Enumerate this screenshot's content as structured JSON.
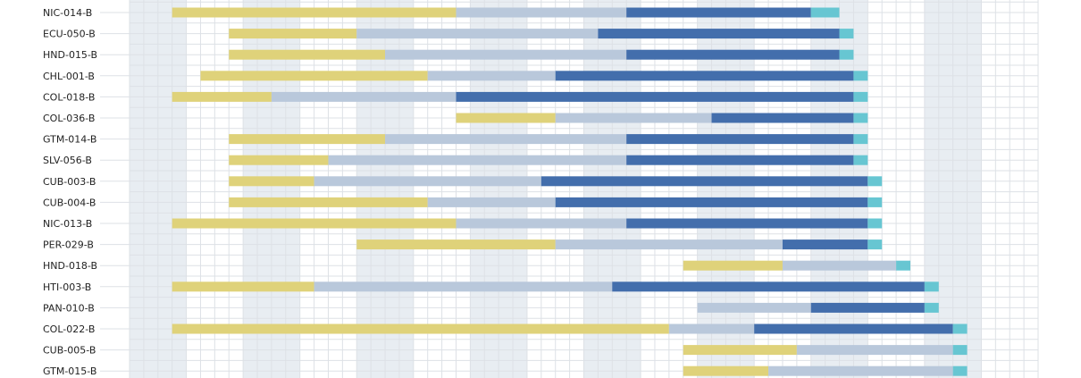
{
  "chart_data": {
    "type": "gantt",
    "title": "",
    "xlabel": "",
    "ylabel": "",
    "x_unit": "grid column",
    "xlim": [
      0,
      64
    ],
    "shaded_band_period": 8,
    "phases": [
      "phase-1",
      "phase-2",
      "phase-3",
      "phase-4"
    ],
    "colors": {
      "phase-1": "#dfd27a",
      "phase-2": "#b9c8db",
      "phase-3": "#436eac",
      "phase-4": "#67c6d2",
      "band": "#e8edf2",
      "grid": "#dde1e6"
    },
    "rows": [
      {
        "label": "NIC-014-B",
        "segments": [
          [
            3,
            23,
            "phase-1"
          ],
          [
            23,
            35,
            "phase-2"
          ],
          [
            35,
            48,
            "phase-3"
          ],
          [
            48,
            50,
            "phase-4"
          ]
        ]
      },
      {
        "label": "ECU-050-B",
        "segments": [
          [
            7,
            16,
            "phase-1"
          ],
          [
            16,
            33,
            "phase-2"
          ],
          [
            33,
            50,
            "phase-3"
          ],
          [
            50,
            51,
            "phase-4"
          ]
        ]
      },
      {
        "label": "HND-015-B",
        "segments": [
          [
            7,
            18,
            "phase-1"
          ],
          [
            18,
            35,
            "phase-2"
          ],
          [
            35,
            50,
            "phase-3"
          ],
          [
            50,
            51,
            "phase-4"
          ]
        ]
      },
      {
        "label": "CHL-001-B",
        "segments": [
          [
            5,
            21,
            "phase-1"
          ],
          [
            21,
            30,
            "phase-2"
          ],
          [
            30,
            51,
            "phase-3"
          ],
          [
            51,
            52,
            "phase-4"
          ]
        ]
      },
      {
        "label": "COL-018-B",
        "segments": [
          [
            3,
            10,
            "phase-1"
          ],
          [
            10,
            23,
            "phase-2"
          ],
          [
            23,
            51,
            "phase-3"
          ],
          [
            51,
            52,
            "phase-4"
          ]
        ]
      },
      {
        "label": "COL-036-B",
        "segments": [
          [
            23,
            30,
            "phase-1"
          ],
          [
            30,
            41,
            "phase-2"
          ],
          [
            41,
            51,
            "phase-3"
          ],
          [
            51,
            52,
            "phase-4"
          ]
        ]
      },
      {
        "label": "GTM-014-B",
        "segments": [
          [
            7,
            18,
            "phase-1"
          ],
          [
            18,
            35,
            "phase-2"
          ],
          [
            35,
            51,
            "phase-3"
          ],
          [
            51,
            52,
            "phase-4"
          ]
        ]
      },
      {
        "label": "SLV-056-B",
        "segments": [
          [
            7,
            14,
            "phase-1"
          ],
          [
            14,
            35,
            "phase-2"
          ],
          [
            35,
            51,
            "phase-3"
          ],
          [
            51,
            52,
            "phase-4"
          ]
        ]
      },
      {
        "label": "CUB-003-B",
        "segments": [
          [
            7,
            13,
            "phase-1"
          ],
          [
            13,
            29,
            "phase-2"
          ],
          [
            29,
            52,
            "phase-3"
          ],
          [
            52,
            53,
            "phase-4"
          ]
        ]
      },
      {
        "label": "CUB-004-B",
        "segments": [
          [
            7,
            21,
            "phase-1"
          ],
          [
            21,
            30,
            "phase-2"
          ],
          [
            30,
            52,
            "phase-3"
          ],
          [
            52,
            53,
            "phase-4"
          ]
        ]
      },
      {
        "label": "NIC-013-B",
        "segments": [
          [
            3,
            23,
            "phase-1"
          ],
          [
            23,
            35,
            "phase-2"
          ],
          [
            35,
            52,
            "phase-3"
          ],
          [
            52,
            53,
            "phase-4"
          ]
        ]
      },
      {
        "label": "PER-029-B",
        "segments": [
          [
            16,
            30,
            "phase-1"
          ],
          [
            30,
            46,
            "phase-2"
          ],
          [
            46,
            52,
            "phase-3"
          ],
          [
            52,
            53,
            "phase-4"
          ]
        ]
      },
      {
        "label": "HND-018-B",
        "segments": [
          [
            39,
            46,
            "phase-1"
          ],
          [
            46,
            54,
            "phase-2"
          ],
          [
            54,
            55,
            "phase-4"
          ]
        ]
      },
      {
        "label": "HTI-003-B",
        "segments": [
          [
            3,
            13,
            "phase-1"
          ],
          [
            13,
            34,
            "phase-2"
          ],
          [
            34,
            56,
            "phase-3"
          ],
          [
            56,
            57,
            "phase-4"
          ]
        ]
      },
      {
        "label": "PAN-010-B",
        "segments": [
          [
            40,
            48,
            "phase-2"
          ],
          [
            48,
            56,
            "phase-3"
          ],
          [
            56,
            57,
            "phase-4"
          ]
        ]
      },
      {
        "label": "COL-022-B",
        "segments": [
          [
            3,
            38,
            "phase-1"
          ],
          [
            38,
            44,
            "phase-2"
          ],
          [
            44,
            58,
            "phase-3"
          ],
          [
            58,
            59,
            "phase-4"
          ]
        ]
      },
      {
        "label": "CUB-005-B",
        "segments": [
          [
            39,
            47,
            "phase-1"
          ],
          [
            47,
            58,
            "phase-2"
          ],
          [
            58,
            59,
            "phase-4"
          ]
        ]
      },
      {
        "label": "GTM-015-B",
        "segments": [
          [
            39,
            45,
            "phase-1"
          ],
          [
            45,
            58,
            "phase-2"
          ],
          [
            58,
            59,
            "phase-4"
          ]
        ]
      }
    ]
  }
}
